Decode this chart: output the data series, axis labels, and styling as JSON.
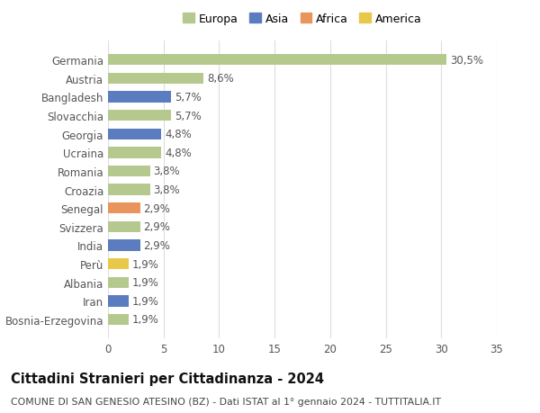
{
  "countries": [
    "Bosnia-Erzegovina",
    "Iran",
    "Albania",
    "Perù",
    "India",
    "Svizzera",
    "Senegal",
    "Croazia",
    "Romania",
    "Ucraina",
    "Georgia",
    "Slovacchia",
    "Bangladesh",
    "Austria",
    "Germania"
  ],
  "values": [
    1.9,
    1.9,
    1.9,
    1.9,
    2.9,
    2.9,
    2.9,
    3.8,
    3.8,
    4.8,
    4.8,
    5.7,
    5.7,
    8.6,
    30.5
  ],
  "labels": [
    "1,9%",
    "1,9%",
    "1,9%",
    "1,9%",
    "2,9%",
    "2,9%",
    "2,9%",
    "3,8%",
    "3,8%",
    "4,8%",
    "4,8%",
    "5,7%",
    "5,7%",
    "8,6%",
    "30,5%"
  ],
  "colors": [
    "#b5c98e",
    "#5b7dbf",
    "#b5c98e",
    "#e8c84a",
    "#5b7dbf",
    "#b5c98e",
    "#e8945a",
    "#b5c98e",
    "#b5c98e",
    "#b5c98e",
    "#5b7dbf",
    "#b5c98e",
    "#5b7dbf",
    "#b5c98e",
    "#b5c98e"
  ],
  "legend_labels": [
    "Europa",
    "Asia",
    "Africa",
    "America"
  ],
  "legend_colors": [
    "#b5c98e",
    "#5b7dbf",
    "#e8945a",
    "#e8c84a"
  ],
  "title": "Cittadini Stranieri per Cittadinanza - 2024",
  "subtitle": "COMUNE DI SAN GENESIO ATESINO (BZ) - Dati ISTAT al 1° gennaio 2024 - TUTTITALIA.IT",
  "xlim": [
    0,
    35
  ],
  "xticks": [
    0,
    5,
    10,
    15,
    20,
    25,
    30,
    35
  ],
  "background_color": "#ffffff",
  "grid_color": "#dddddd",
  "bar_height": 0.6,
  "label_fontsize": 8.5,
  "tick_fontsize": 8.5,
  "title_fontsize": 10.5,
  "subtitle_fontsize": 7.8,
  "legend_fontsize": 9
}
